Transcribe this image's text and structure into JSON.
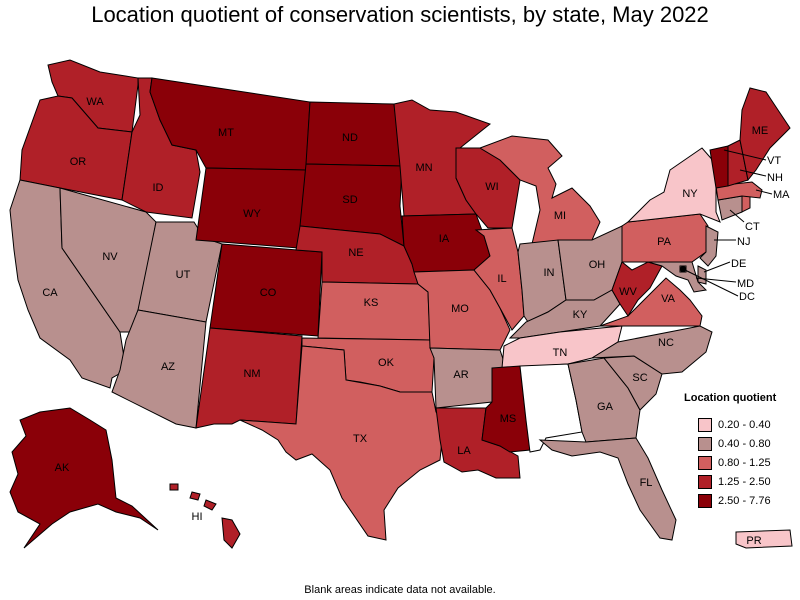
{
  "title": "Location quotient of conservation scientists, by state, May 2022",
  "footnote": "Blank areas indicate data not available.",
  "legend": {
    "title": "Location quotient",
    "items": [
      {
        "label": "0.20 - 0.40",
        "color": "#f8c5c9"
      },
      {
        "label": "0.40 - 0.80",
        "color": "#b8908e"
      },
      {
        "label": "0.80 - 1.25",
        "color": "#d15f5f"
      },
      {
        "label": "1.25 - 2.50",
        "color": "#b02028"
      },
      {
        "label": "2.50 - 7.76",
        "color": "#8a0008"
      }
    ]
  },
  "states": {
    "WA": {
      "label": "WA",
      "class": 3
    },
    "OR": {
      "label": "OR",
      "class": 3
    },
    "CA": {
      "label": "CA",
      "class": 1
    },
    "ID": {
      "label": "ID",
      "class": 3
    },
    "NV": {
      "label": "NV",
      "class": 1
    },
    "UT": {
      "label": "UT",
      "class": 1
    },
    "AZ": {
      "label": "AZ",
      "class": 1
    },
    "MT": {
      "label": "MT",
      "class": 4
    },
    "WY": {
      "label": "WY",
      "class": 4
    },
    "CO": {
      "label": "CO",
      "class": 4
    },
    "NM": {
      "label": "NM",
      "class": 3
    },
    "ND": {
      "label": "ND",
      "class": 4
    },
    "SD": {
      "label": "SD",
      "class": 4
    },
    "NE": {
      "label": "NE",
      "class": 3
    },
    "KS": {
      "label": "KS",
      "class": 2
    },
    "OK": {
      "label": "OK",
      "class": 2
    },
    "TX": {
      "label": "TX",
      "class": 2
    },
    "MN": {
      "label": "MN",
      "class": 3
    },
    "IA": {
      "label": "IA",
      "class": 4
    },
    "MO": {
      "label": "MO",
      "class": 2
    },
    "AR": {
      "label": "AR",
      "class": 1
    },
    "LA": {
      "label": "LA",
      "class": 3
    },
    "WI": {
      "label": "WI",
      "class": 3
    },
    "IL": {
      "label": "IL",
      "class": 2
    },
    "MI": {
      "label": "MI",
      "class": 2
    },
    "IN": {
      "label": "IN",
      "class": 1
    },
    "OH": {
      "label": "OH",
      "class": 1
    },
    "KY": {
      "label": "KY",
      "class": 1
    },
    "TN": {
      "label": "TN",
      "class": 0
    },
    "MS": {
      "label": "MS",
      "class": 4
    },
    "AL": {
      "label": "",
      "class": null
    },
    "GA": {
      "label": "GA",
      "class": 1
    },
    "FL": {
      "label": "FL",
      "class": 1
    },
    "SC": {
      "label": "SC",
      "class": 1
    },
    "NC": {
      "label": "NC",
      "class": 1
    },
    "VA": {
      "label": "VA",
      "class": 2
    },
    "WV": {
      "label": "WV",
      "class": 3
    },
    "PA": {
      "label": "PA",
      "class": 2
    },
    "NY": {
      "label": "NY",
      "class": 0
    },
    "ME": {
      "label": "ME",
      "class": 3
    },
    "VT": {
      "label": "VT",
      "class": 4
    },
    "NH": {
      "label": "NH",
      "class": 3
    },
    "MA": {
      "label": "MA",
      "class": 2
    },
    "CT": {
      "label": "CT",
      "class": 1
    },
    "RI": {
      "label": "",
      "class": 2
    },
    "NJ": {
      "label": "NJ",
      "class": 1
    },
    "DE": {
      "label": "DE",
      "class": 1
    },
    "MD": {
      "label": "MD",
      "class": 1
    },
    "DC": {
      "label": "DC",
      "class": 1
    },
    "AK": {
      "label": "AK",
      "class": 4
    },
    "HI": {
      "label": "HI",
      "class": 3
    },
    "PR": {
      "label": "PR",
      "class": 0
    }
  }
}
